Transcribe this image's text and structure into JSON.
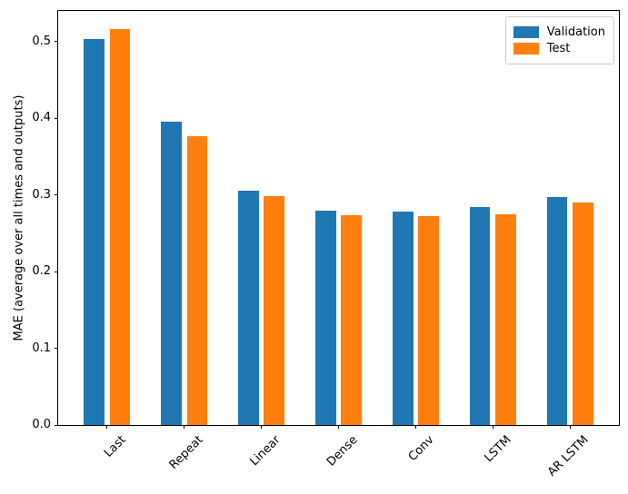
{
  "figure": {
    "background": "#ffffff",
    "spine_color": "#000000",
    "text_color": "#000000"
  },
  "chart_data": {
    "type": "bar",
    "title": "",
    "xlabel": "",
    "ylabel": "MAE (average over all times and outputs)",
    "categories": [
      "Last",
      "Repeat",
      "Linear",
      "Dense",
      "Conv",
      "LSTM",
      "AR LSTM"
    ],
    "series": [
      {
        "name": "Validation",
        "color": "#1f77b4",
        "values": [
          0.503,
          0.396,
          0.305,
          0.279,
          0.278,
          0.284,
          0.297
        ]
      },
      {
        "name": "Test",
        "color": "#ff7f0e",
        "values": [
          0.516,
          0.377,
          0.298,
          0.274,
          0.272,
          0.275,
          0.29
        ]
      }
    ],
    "ylim": [
      0,
      0.54
    ],
    "xlim": [
      -0.63,
      6.63
    ],
    "yticks": [
      0.0,
      0.1,
      0.2,
      0.3,
      0.4,
      0.5
    ],
    "ytick_labels": [
      "0.0",
      "0.1",
      "0.2",
      "0.3",
      "0.4",
      "0.5"
    ],
    "xtick_rotation": 45,
    "bar_width": 0.27,
    "group_offset": 0.17,
    "grid": false,
    "legend": {
      "position": "upper right",
      "entries": [
        "Validation",
        "Test"
      ]
    }
  }
}
